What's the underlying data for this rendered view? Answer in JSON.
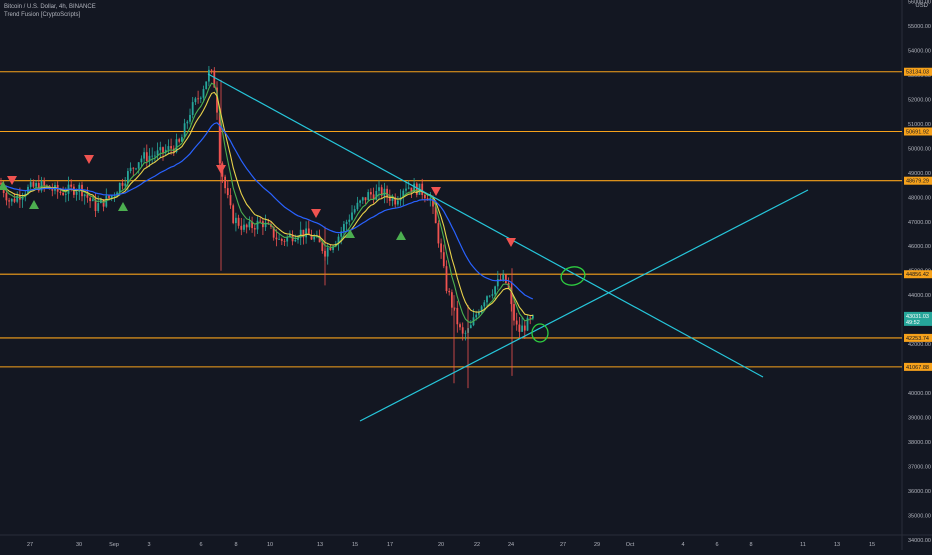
{
  "header": {
    "symbol_line": "Bitcoin / U.S. Dollar, 4h, BINANCE",
    "indicator": "Trend Fusion [CryptoScripts]"
  },
  "currency": "USD",
  "price_axis": {
    "ticks": [
      "56000.00",
      "55000.00",
      "54000.00",
      "53000.00",
      "52000.00",
      "51000.00",
      "50000.00",
      "49000.00",
      "48000.00",
      "47000.00",
      "46000.00",
      "45000.00",
      "44000.00",
      "43000.00",
      "42000.00",
      "41000.00",
      "40000.00",
      "39000.00",
      "38000.00",
      "37000.00",
      "36000.00",
      "35000.00",
      "34000.00"
    ],
    "min": 33400,
    "max": 56300
  },
  "time_axis": {
    "labels": [
      "27",
      "30",
      "Sep",
      "3",
      "6",
      "8",
      "10",
      "13",
      "15",
      "17",
      "20",
      "22",
      "24",
      "27",
      "29",
      "Oct",
      "4",
      "6",
      "8",
      "11",
      "13",
      "15"
    ]
  },
  "levels": [
    {
      "price": 53134,
      "label": "53134.03"
    },
    {
      "price": 50691,
      "label": "50691.92"
    },
    {
      "price": 48679,
      "label": "48679.29"
    },
    {
      "price": 44856,
      "label": "44856.42"
    },
    {
      "price": 42253,
      "label": "42253.74"
    },
    {
      "price": 41068,
      "label": "41067.88"
    }
  ],
  "current_price": {
    "label": "43031.03",
    "sub": "49:52"
  },
  "colors": {
    "background": "#131722",
    "level_line": "#f7a21b",
    "trend_line": "#26c6da",
    "up_candle": "#26a69a",
    "down_candle": "#ef5350",
    "ma_fast": "#e8d14a",
    "ma_mid": "#4caf50",
    "ma_slow": "#2962ff",
    "marker_green": "#4caf50",
    "marker_red": "#ef5350",
    "circle": "#2ecc40",
    "axis_text": "#b2b5be"
  },
  "icons": [
    "triangle-up-signal-icon",
    "triangle-down-signal-icon",
    "hand-drawn-circle-icon"
  ]
}
